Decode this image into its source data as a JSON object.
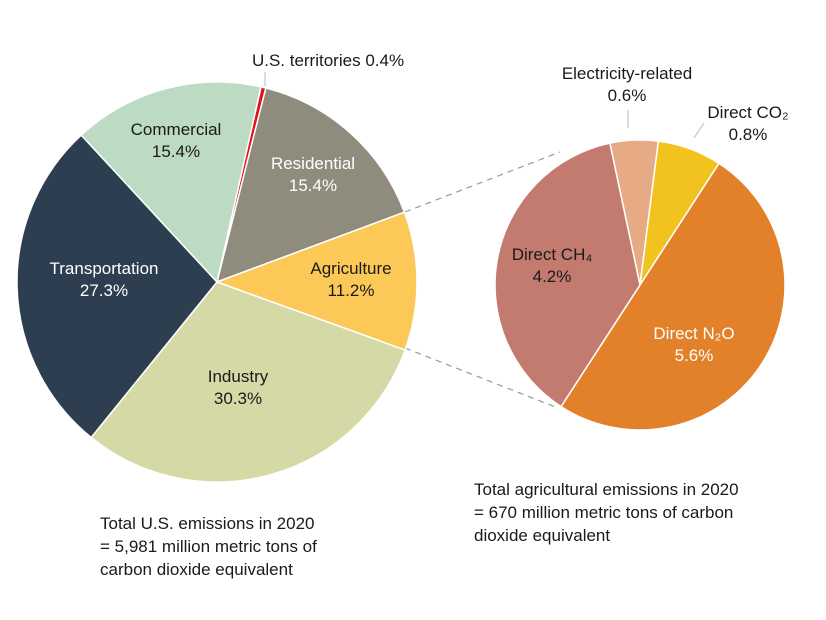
{
  "chart_data": [
    {
      "type": "pie",
      "categories": [
        "U.S. territories",
        "Residential",
        "Agriculture",
        "Industry",
        "Transportation",
        "Commercial"
      ],
      "values": [
        0.4,
        15.4,
        11.2,
        30.3,
        27.3,
        15.4
      ],
      "value_labels": [
        "0.4%",
        "15.4%",
        "11.2%",
        "30.3%",
        "27.3%",
        "15.4%"
      ],
      "colors": [
        "#e3131b",
        "#8f8c7e",
        "#fcc857",
        "#d5d9a5",
        "#2d3e50",
        "#bddbc2"
      ],
      "note": [
        "Total U.S. emissions in 2020",
        "= 5,981 million metric tons of",
        "carbon dioxide equivalent"
      ]
    },
    {
      "type": "pie",
      "categories": [
        "Electricity-related",
        "Direct CO₂",
        "Direct N₂O",
        "Direct CH₄"
      ],
      "values": [
        0.6,
        0.8,
        5.6,
        4.2
      ],
      "value_labels": [
        "0.6%",
        "0.8%",
        "5.6%",
        "4.2%"
      ],
      "colors": [
        "#e6aa85",
        "#f2c31e",
        "#e2812a",
        "#c47b6f"
      ],
      "note": [
        "Total agricultural emissions in 2020",
        "= 670 million metric tons of carbon",
        "dioxide equivalent"
      ]
    }
  ]
}
